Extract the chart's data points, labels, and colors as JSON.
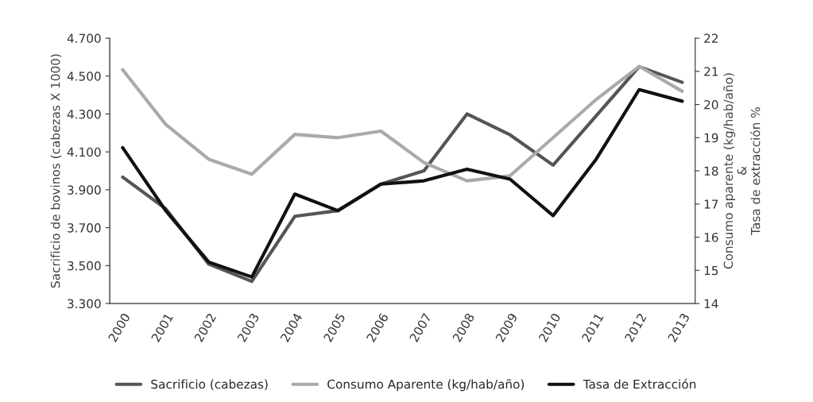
{
  "chart_data": {
    "type": "line",
    "categories": [
      "2000",
      "2001",
      "2002",
      "2003",
      "2004",
      "2005",
      "2006",
      "2007",
      "2008",
      "2009",
      "2010",
      "2011",
      "2012",
      "2013"
    ],
    "series": [
      {
        "name": "Sacrificio (cabezas)",
        "color": "#555555",
        "values": [
          3967,
          3800,
          3508,
          3417,
          3760,
          3790,
          3930,
          4000,
          4300,
          4190,
          4030,
          4290,
          4550,
          4467
        ]
      },
      {
        "name": "Consumo Aparente (kg/hab/año)",
        "color": "#aaaaaa",
        "axis": "y2",
        "values": [
          21.05,
          19.4,
          18.35,
          17.9,
          19.1,
          19.0,
          19.2,
          18.25,
          17.7,
          17.85,
          19.0,
          20.15,
          21.15,
          20.4
        ]
      },
      {
        "name": "Tasa de Extracción",
        "color": "#111111",
        "axis": "y2",
        "values": [
          18.7,
          16.8,
          15.25,
          14.8,
          17.3,
          16.8,
          17.6,
          17.7,
          18.05,
          17.75,
          16.65,
          18.35,
          20.45,
          20.1
        ]
      }
    ],
    "ylabel": "Sacrificio de bovinos (cabezas X 1000)",
    "y2label": "Consumo aparente (kg/hab/año)\n&\nTasa de extracción %",
    "ylim": [
      3300,
      4700
    ],
    "yticks": [
      {
        "value": 3300,
        "label": "3.300"
      },
      {
        "value": 3500,
        "label": "3.500"
      },
      {
        "value": 3700,
        "label": "3.700"
      },
      {
        "value": 3900,
        "label": "3.900"
      },
      {
        "value": 4100,
        "label": "4.100"
      },
      {
        "value": 4300,
        "label": "4.300"
      },
      {
        "value": 4500,
        "label": "4.500"
      },
      {
        "value": 4700,
        "label": "4.700"
      }
    ],
    "y2lim": [
      14,
      22
    ],
    "y2ticks": [
      14,
      15,
      16,
      17,
      18,
      19,
      20,
      21,
      22
    ],
    "legend": "bottom",
    "grid": false,
    "line_style": "solid"
  }
}
